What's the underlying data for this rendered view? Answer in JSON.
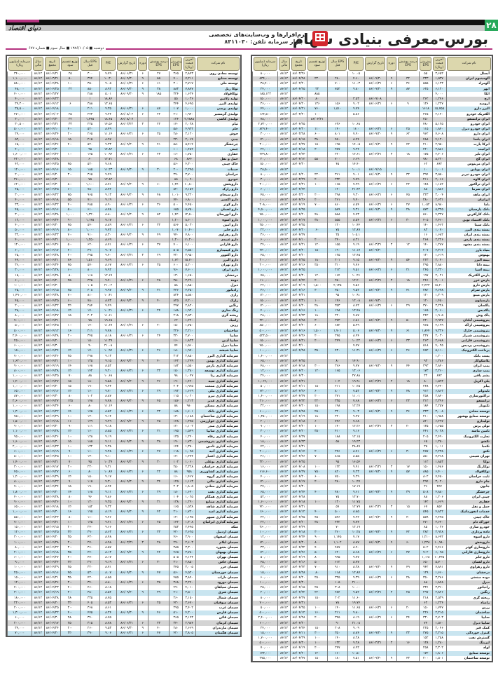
{
  "header": {
    "page_number": "۲۸",
    "title": "بورس-معرفی بنیادی سهام",
    "left_logo": "دنیای اقتصاد",
    "dateline": "دوشنبه ■ ۱۳۸۶/۱۰/۰۵ ■ سال سوم ■ شماره ۶۷۷",
    "ad": {
      "brand": "تدبیر",
      "line1": "نرم‌افزارها و وب‌سایت‌های تخصصی",
      "line2": "بازار سرمایه  تلفن: ۸۳۱۱۰۳۰"
    }
  },
  "colors": {
    "header_cell": "#dcd7ad",
    "row_gray": "#d4d4d4",
    "row_blue": "#c9e5f0",
    "accent_magenta": "#b5327f",
    "page_number_bg": "#27a85a"
  },
  "columns": [
    "نام شرکت",
    "آخرین قیمت (ریال)",
    "پیش‌بینی EPS",
    "درصد پوشش EPS",
    "دوره",
    "تاریخ گزارش",
    "P/E",
    "EPS سال قبل",
    "توزیع تقسیم سود",
    "تاریخ مجمع",
    "سال مالی",
    "سرمایه (میلیون ریال)"
  ],
  "right_table": {
    "rows": [
      "آبسال|۳,۶۵۲|۵۵||||۱۰.۰۵|||۸۶/۰۳/۲۶|۸۶/۱۲|۸۰,۰۰۰",
      "آلومینیوم ایران|۱,۵۳۷|۳۳۳|۳۲|۹|۸۶/۰۹/۳۰|۴.۶۰|۲۸۰|۲۳۰|۸۶/۰۴/۲۸|۸۶/۱۲|۵۳۴,۰۰۰",
      "آلومراد|۶,۱۲۳|۵۵۵|۳۶|۶|۸۶/۰۶/۳۱|۱۱.۰۳|۷۰۰||۸۶/۰۲/۲۰|۸۶/۱۲|۳۸,۴۰۰",
      "ابهر|۶,۱۲۰|۶۲۵|۸۷|۹|۸۶/۰۹/۳۰|۹.۸۰|۷۵۲|۲۲|۸۶/۰۴/۲۵|۸۶/۱۲|۲۴,۰۰۰",
      "اتکا|۴,۰۰۰|||||||۸۸۵||۸۶/۱۲|۱۸۵,۱۲۳",
      "ارج|۱,۲۷۶|۳۶۲|||۸۶/۰۹/۰۸|۳.۵۳||۸۰|۸۶/۰۴/۲۰|۸۶/۱۲|۱۵۰,۰۰۰",
      "ارومیه|۱,۲۲۷|۱۳۶|۹|۶|۸۶/۰۶/۳۱|۹.۰۲|۱۵۶|۱۳۶|۸۶/۰۴/۲۰|۸۶/۱۲|۳۶,۰۰۰",
      "البرز دارو|۱۵,۷۵۵|۱۶۱۸||||۹.۷۴|۱,۵۱۰|۷۶۰|۸۶/۰۴/۲۱|۸۶/۱۲|۴۴,۰۰۰",
      "الکتریک خودرو|۲,۱۴۰|۳۶۵||||۵.۸۶||۱۰۰|۸۶/۰۳/۳۰|۸۶/۱۲|۱۶۴,۵۰۰",
      "ایران ترانسفو||۲۵۰||||||۸۶/۰۴/۳۱||۸۶/۱۲|۷۸,۰۰۰",
      "ایران خودرو|۵,۱۲۵|۴۸۰||||۱۰.۶۸|۶۳۶||۸۶/۰۴/۲۵|۸۶/۱۲|۲,۷۲۰,۰۰۰",
      "ایران خودرو دیزل|۱,۸۴۰|۱۱۵|۲۵|۶|۸۶/۰۶/۳۱|۱۶.۰|۱۴۰|۱۱۰|۸۶/۰۴/۳۰|۸۶/۱۲|۸۲۹,۴۰۰",
      "ایران دارو|۷,۶۰۸|۹۶۲|۶۲|۹|۸۶/۰۹/۳۰|۷.۹۰|۸۰۱|۶۰۰|۸۶/۰۳/۲۸|۸۶/۱۲|۳۰,۰۰۰",
      "ایران یاسا|۴,۱۲۰|۴۸۸||||۸.۴۴|۴۵۰|۳۸۰|۸۶/۰۴/۱۵|۸۶/۱۲|۱۲۰,۰۰۰",
      "ایرکا پارت|۲,۹۵۰|۲۱۰|۴۲|۹|۸۶/۰۹/۳۰|۱۴.۰۵|۱۹۵|۱۵۰|۸۶/۰۴/۲۷|۸۶/۱۲|۳۰۰,۰۰۰",
      "ایرانیت|۳,۸۸۱|۴۲۰||||۹.۲۴|۳۸۷|۳۰۰|۸۶/۰۴/۱۸|۸۶/۱۲|۴۴,۰۰۰",
      "ایران تایر|۲,۲۰۶|۱۷۵|۱۸|۳|۸۶/۰۳/۳۱|۱۲.۶۱|۲۲۰||۸۶/۰۴/۲۳|۸۶/۱۲|۲۴۹,۸۰۰",
      "ایران گچ|۵,۲۲۰|۷۸۰||||۶.۶۹|۷۰۰|۵۵۰|۸۶/۰۴/۱۲|۸۶/۱۲|۲۰,۰۰۰",
      "ایران مرینوس|۸۹۳|۶۲||||۱۴.۴۰|۴۵||۸۶/۰۴/۳۰|۸۶/۱۲|۱۵۰,۰۰۰",
      "ایران پوپلین|۱,۰۰۱|۱۰|||۸۶/۰۹/۱۵|۱۰۰.۱||||۸۶/۱۲|۲۸,۵۰۰",
      "ایران خودرو تبریز|۳,۵۵۰|۳۹۴|۳۲|۹|۸۶/۰۹/۳۰|۹.۰۱|۳۶۱|۲۲۰|۸۶/۰۴/۲۰|۸۶/۱۲|۸۰,۰۰۰",
      "ایران کاوه|۲,۰۶۶|۲۱۱||||۹.۷۹|۲۳۲|۲۰۰|۸۶/۰۳/۲۹|۸۶/۱۲|۳۰,۰۰۰",
      "ایران تراکتور|۱,۱۸۲|۱۴۸|۲۲|۶|۸۶/۰۶/۳۱|۷.۹۹|۱۶۵|۱۰۰|۸۶/۰۴/۳۱|۸۶/۱۲|۳۰۰,۰۰۰",
      "ایران سرما|۱,۸۸۶|۸۸||||۲۱.۴۳|۱۲۰||۸۶/۰۴/۲۴|۸۶/۱۲|۶۰,۰۰۰",
      "ایران ماهد|۳,۰۰۴|۳۲۳|۴۵|۶|۸۶/۰۶/۳۱|۹.۳۰|۲۹۸|۲۰۰|۸۶/۰۳/۲۰|۸۶/۱۲|۴۵,۰۰۰",
      "ایرانیان|۲,۶۳۱|۲۸۰||||۹.۴۰|۲۶۱|۲۰۰|۸۶/۰۴/۲۶|۸۶/۱۲|۱۰۰,۰۰۰",
      "باما|۸,۹۸۰|۱,۰۵۲|۲۷|۶|۸۶/۰۶/۳۱|۸.۵۴|۸۶۰|۷۰۰|۸۶/۰۴/۱۹|۸۶/۱۲|۲۰۸,۰۰۰",
      "بانک پارسیان|۵,۳۲۵|۵۷۲|۲۸|۹|۸۶/۰۹/۳۰|۹.۳۱|۵۸۹||۸۶/۰۴/۲۵|۸۶/۱۲|۴,۵۰۰,۰۰۰",
      "بانک کارآفرین|۴,۳۲۷|۵۶۰||||۷.۷۳|۵۸۸|۴۸۰|۸۶/۰۴/۲۰|۸۶/۱۲|۷۵۰,۰۰۰",
      "بانک اقتصاد نوین|۳,۴۶۰|۴۰۵|۳۰|۶|۸۶/۰۶/۳۱|۸.۵۴|۵۵۵|۳۸۰|۸۶/۰۴/۱۷|۸۶/۱۲|۱,۰۰۰,۰۰۰",
      "بانک سینا|۱,۴۶۲|۱۴۰||||۱۰.۴۴|۱۲۰||۸۶/۰۴/۲۵|۸۶/۱۲|۲۵۰,۰۰۰",
      "بسته بندی البرز|۱,۰۷۰|۸۳||||۱۲.۸۹|۷۵|۶۰|۸۶/۰۴/۲۰|۸۶/۱۲|۲۲,۰۰۰",
      "بسته بندی ایران|۱,۶۸۲|۱۶||||۱۰۵.۱|۲۵||۸۶/۰۴/۲۷|۸۶/۱۲|۳۶,۰۰۰",
      "بسته بندی پارس|۲,۲۲۶|۲۶۸||||۸.۳۱|۲۴۰|۲۰۰|۸۶/۰۴/۱۰|۸۶/۱۲|۶۰,۰۰۰",
      "بسته بندی مشهد|۱,۲۸۷|۱۴۰|۱۲|۳|۸۶/۰۳/۳۱|۹.۱۹|۱۵۵|۱۲۰|۸۶/۰۴/۲۱|۸۶/۱۲|۲۴,۰۰۰",
      "بنیاد بارز|۲,۳۱۲|۲۰۷|||۸۶/۰۹/۳۰|۱۱.۱۷|۱۹۰|۱۵۰|۸۶/۰۳/۳۰|۸۶/۱۲|۲۴۰,۰۰۰",
      "بهنوش|۱,۶۱۹|۱۳۰||||۱۲.۴۵|۱۲۵||۸۶/۰۴/۲۰|۸۶/۱۲|۴۵,۰۰۰",
      "بیمه البرز|۲,۰۴۰|۲۲۳|۵۴|۹|۸۶/۰۹/۳۰|۹.۱۵|۲۰۱|۱۸۰|۸۶/۰۳/۲۵|۸۶/۱۲|۳۰۰,۰۰۰",
      "بیمه دانا|۲,۸۸۰|۲۹۵||||۹.۷۶|۳۱۰|۲۵۰|۸۶/۰۴/۱۶|۸۶/۱۲|۲۰۰,۰۰۰",
      "بیمه آسیا|۲,۳۳۰|۲۴۵|۲۱|۶|۸۶/۰۶/۳۱|۹.۵۱|۲۱۳||۸۶/۰۴/۲۵|۸۶/۱۲|۱,۰۰۰,۰۰۰",
      "پارس الکتریک|۲,۰۲۱|۱۹۷||||۱۰.۲۶|۱۶۴|۱۲۰|۸۶/۰۴/۳۰|۸۶/۱۲|۷۵,۰۰۰",
      "پارس خزر|۳,۰۰۱|۲۴۶|۱۸|۳|۸۶/۰۳/۳۱|۱۲.۲۰|۲۵۰|۲۰۰|۸۶/۰۴/۲۴|۸۶/۱۲|۱۱۰,۰۰۰",
      "پارس دارو|۱۸,۴۰۰|۲,۴۳۳||||۷.۵۶|۲,۱۳۵|۱,۵۰۰|۸۶/۰۴/۰۹|۸۶/۱۲|۲۲,۰۰۰",
      "پارس سرام|۳,۶۳۸|۳۸۲|۴۱|۹|۸۶/۰۹/۳۰|۹.۵۲|۳۵۰|۳۰۰|۸۶/۰۴/۱۶|۸۶/۱۲|۳۶,۰۰۰",
      "پارس مینو|۱,۳۰۹|۱۲۰||||۱۰.۹۱|۹۵||۸۶/۰۴/۳۱|۸۶/۱۲|۱۲۰,۰۰۰",
      "پارسیلون|۱,۴۵۰|۱۲۰|||۸۶/۰۹/۳۰|۱۲.۰۸|۱۴۶|۱۰۰|۸۶/۰۳/۳۱|۸۶/۱۲|۱۵۰,۰۰۰",
      "پاکسان|۳,۲۲۸|۳۷۰|۲۹|۶|۸۶/۰۶/۳۱|۸.۷۲|۳۵۳|۲۸۰|۸۶/۰۴/۲۰|۸۶/۱۲|۱۲۰,۰۰۰",
      "پاکدیس|۲,۰۶۰|۱۶۵||||۱۲.۴۸|۱۹۸|۱۰۰|۸۶/۰۴/۱۶|۸۶/۱۲|۴۰,۰۰۰",
      "پاک وش|۱,۹۰۵|۲۴۲||||۷.۸۷|۲۲۰|۱۸۰|۸۶/۰۴/۲۳|۸۶/۱۲|۲۸,۰۰۰",
      "پتروشیمی آبادان|۲,۹۲۷|۴۳۰|۵۰|۹|۸۶/۰۹/۳۰|۶.۸۱|۳۷۳|۳۰۰|۸۶/۰۴/۲۸|۸۶/۱۲|۳۲۰,۰۰۰",
      "پتروشیمی اراک|۴,۱۹۹|۷۶۵||||۵.۴۹|۶۸۲|۶۰۰|۸۶/۰۴/۳۰|۸۶/۱۲|۸۵۰,۰۰۰",
      "پتروشیمی خارک|۹,۳۳۶|۱,۸۴۴|۶۱|۹|۸۶/۰۹/۳۰|۵.۰۶|۱,۷۰۱|۱,۵۰۰|۸۶/۰۴/۱۶|۸۶/۱۲|۵۰۰,۰۰۰",
      "پتروشیمی شیراز|۲,۰۳۰|۲۲۷||||۸.۹۴|۲۴۵|۲۰۰|۸۶/۰۴/۲۶|۸۶/۱۲|۵۲۲,۵۰۰",
      "پتروشیمی فارابی|۲,۶۸۸|۲۶۳|۳۳|۶|۸۶/۰۶/۳۱|۱۰.۲۲|۲۴۹|۲۰۰|۸۶/۰۴/۲۱|۸۶/۱۲|۱۵۰,۰۰۰",
      "پتروشیمی پردیس|۴,۰۲۵|۵۱۸||||۷.۷۷|||۸۶/۰۳/۱۰|۸۶/۱۲|۷۵۰,۰۰۰",
      "پرداخت الکترونیک|۵,۱۱۰|۴۵۲|۲۶|۶|۸۶/۰۶/۳۱|۱۱.۳۱|۴۳۰|۳۵۰|۸۶/۰۴/۲۸|۸۶/۱۲|۱۰۰,۰۰۰",
      "پست بانک|۱,۲۰۰|||||||||۸۶/۱۲|۱,۴۰۰,۰۰۰",
      "پلاسکوکار|۱,۳۸۶|۹۳||||۱۴.۹۰|۸۰||۸۶/۰۴/۲۵|۸۶/۱۲|۶۵,۰۰۰",
      "پمپ ایران|۳,۸۴۰|۳۹۳|۴۴|۹|۸۶/۰۹/۳۰|۹.۷۷|۳۶۶|۳۰۰|۸۶/۰۴/۱۸|۸۶/۱۲|۴۸,۰۰۰",
      "پمپ سازی|۲,۲۶۰|۱۷۳||||۱۳.۰۶|۱۶۵|۱۲۰|۸۶/۰۴/۲۰|۸۶/۱۲|۱۲,۰۰۰",
      "پشم بافی|۸۹۲|۳۲||||۲۷.۸۸|||۸۶/۰۴/۳۰|۸۶/۱۲|۲۴,۰۰۰",
      "پلی اکریل|۱,۵۹۳|۸۰|۱۸|۳|۸۶/۰۳/۳۱|۱۹.۹۱|۱۰۴||۸۶/۰۴/۳۱|۸۶/۱۲|۱,۰۶۴,۰۰۰",
      "پیام|۲,۴۴۰|۲۳۸||||۱۰.۲۵|۲۱۱|۱۵۰|۸۶/۰۴/۱۱|۸۶/۱۲|۵۰,۰۰۰",
      "تایدواتر|۶,۸۶۲|۹۱۲|۴۸|۹|۸۶/۰۹/۳۰|۷.۵۲|۸۰۰|۶۰۰|۸۶/۰۴/۲۶|۸۶/۱۲|۶۳۰,۰۰۰",
      "تراکتورسازی|۲,۸۴۰|۲۵۸||||۱۱.۰۱|۲۷۱|۲۰۰|۸۶/۰۴/۲۷|۸۶/۱۲|۱,۴۰۰,۰۰۰",
      "ترانسفو|۲,۳۹۶|۳۱۲|۲۳|۶|۸۶/۰۶/۳۱|۷.۶۸|۳۳۵|۲۲۰|۸۶/۰۴/۲۲|۸۶/۱۲|۲۱۰,۰۰۰",
      "تکنوتار|۲,۲۵۷|۱۸۴||||۱۲.۲۷|۱۹۸|۱۵۰|۸۶/۰۴/۲۰|۸۶/۱۲|۳۲,۰۰۰",
      "توسعه معادن|۳,۰۰۸|۳۳۳|۳۶|۹|۸۶/۰۹/۳۰|۹.۰۳|۳۲۰|۲۵۰|۸۶/۰۴/۲۸|۸۶/۱۲|۶۰۰,۰۰۰",
      "توسعه صنایع بهشهر|۱,۹۸۸|۲۱۰||||۹.۴۷|۲۲۰|۱۸۰|۸۶/۰۴/۱۹|۸۶/۱۲|۱,۳۵۰,۰۰۰",
      "تولیدارو|۶,۲۹۷|۸۲۰||||۷.۶۸|۷۴۶|۶۰۰|۸۶/۰۴/۱۸|۸۶/۱۲|۲۰,۰۰۰",
      "تولی پرس|۱,۶۵۵|۱۳۵|۲۰|۳|۸۶/۰۳/۳۱|۱۲.۲۶|۱۴۰|۱۰۰|۸۶/۰۴/۳۰|۸۶/۱۲|۹۰,۰۰۰",
      "تامین ماسه|۴,۰۳۸|۴۴۱||||۹.۱۶|۴۱۰|۳۵۰|۸۶/۰۴/۲۰|۸۶/۱۲|۳۰,۰۰۰",
      "تجارت الکترونیک|۲,۴۹۰|۲۰۵||||۱۲.۱۵|۱۸۸||۸۶/۰۴/۲۷|۸۶/۱۲|۴۰,۰۰۰",
      "تکشو|۱,۲۵۰|۶۵||||۱۹.۲۳|۵۸||۸۶/۰۴/۲۳|۸۶/۱۲|۱۸,۰۰۰",
      "تکمبا|۱,۰۱۱|۳۵||||۲۸.۸۹|||۸۶/۰۴/۳۱|۸۶/۱۲|۴۲,۰۰۰",
      "تکنو|۲,۲۳۸|۲۵۷|۳۰|۶|۸۶/۰۶/۳۱|۸.۷۱|۲۴۶|۲۰۰|۸۶/۰۴/۱۴|۸۶/۱۲|۲۰۰,۰۰۰",
      "تهران شیمی|۷,۲۶۸|۸۵۰||||۸.۵۵|۸۱۵|۷۰۰|۸۶/۰۴/۲۶|۸۶/۱۲|۲۶,۰۰۰",
      "توکا|۱,۸۵۳|۱۱۲||||۱۶.۵۴|۹۵||۸۶/۰۴/۲۵|۸۶/۱۲|۳۲۰,۰۰۰",
      "توکارنگ|۱,۴۸۶|۱۵۰|۱۷|۳|۸۶/۰۳/۳۱|۹.۹۱|۱۲۲|۱۰۰|۸۶/۰۴/۰۸|۸۶/۱۲|۱۶,۰۰۰",
      "توکافولاد|۶,۴۰۰|۸۸۵|۵۷|۹|۸۶/۰۹/۳۰|۷.۲۳|۸۲۰|۷۵۰|۸۶/۰۴/۲۷|۸۶/۱۲|۶۱۶,۶۰۰",
      "ثابت خراسان|۷,۴۵۰|۸۰۲||||۹.۲۹|۷۵۰|۶۰۰|۸۶/۰۴/۲۰|۸۶/۱۲|۴۰,۰۰۰",
      "جام دارو|۳,۰۲۰|۲۹۴||||۱۰.۲۷|۲۸۰|۲۰۰|۸۶/۰۴/۱۷|۸۶/۱۲|۱۲۰,۰۰۰",
      "جابون|۴۴۷|۲۶||||۱۷.۱۹|||۸۶/۰۴/۳۰|۸۶/۱۲|۲۷,۰۰۰",
      "چرخشگر|۴,۸۸۰|۵۰۸|۳۹|۹|۸۶/۰۹/۳۰|۹.۶۱|۴۸۰|۴۰۰|۸۶/۰۴/۲۴|۸۶/۱۲|۶۵,۰۰۰",
      "چینی ایران|۱,۲۰۶|۸۸||||۱۳.۷۰|۷۵||۸۶/۰۴/۲۸|۸۶/۱۲|۵۲,۰۰۰",
      "حفاری|۱,۶۶۹|۱۴۲||||۱۱.۷۵|۱۳۰|۱۰۰|۸۶/۰۴/۱۸|۸۶/۱۲|۱,۶۰۰,۰۰۰",
      "حمل و نقل|۸۵۷|۶۷|۱۵|۳|۸۶/۰۳/۳۱|۱۲.۷۹|۵۹||۸۶/۰۴/۳۱|۸۶/۱۲|۴۲۰,۰۰۰",
      "خدمات انفورماتیک|۴,۸۲۲|۵۴۵||||۸.۸۵|۵۰۰|۴۰۰|۸۶/۰۴/۱۲|۸۶/۱۲|۱۶۰,۰۰۰",
      "خاک چینی|۴,۴۲۵|۵۵۹|۴۰|۹|۸۶/۰۹/۳۰|۷.۹۲|۵۲۶|۴۵۰|۸۶/۰۴/۲۵|۸۶/۱۲|۴۲,۰۰۰",
      "خوراک دام|۳,۶۴۰|۴۷۰||||۷.۷۴|۴۳۲|۳۸۰|۸۶/۰۴/۲۰|۸۶/۱۲|۲۲,۰۰۰",
      "خودرو سازی|۱,۰۳۶|۸۵||||۱۲.۱۹|۷۰||۸۶/۰۴/۲۹|۸۶/۱۲|۳۶۰,۰۰۰",
      "داده پردازی|۳,۹۲۸|۳۸۲|۴۲|۹|۸۶/۰۹/۳۰|۱۰.۲۸|۳۶۰|۳۰۰|۸۶/۰۴/۱۸|۸۶/۱۲|۱۰۰,۰۰۰",
      "دارو اسوه|۸,۶۷۲|۱,۲۱۰||||۷.۱۷|۱,۱۴۵|۹۰۰|۸۶/۰۴/۲۴|۸۶/۱۲|۱۲,۰۰۰",
      "داروپخش|۱۰,۹۸۰|۱,۲۳۸|۶۰|۹|۸۶/۰۹/۳۰|۸.۸۷|۱,۱۰۲|۸۰۰|۸۶/۰۴/۳۰|۸۶/۱۲|۶۲۰,۰۰۰",
      "داروسازی کوثر|۴,۴۶۶|۵۰۲||||۸.۹۰|۴۸۷|۴۰۰|۸۶/۰۴/۲۲|۸۶/۱۲|۳۳,۰۰۰",
      "داروسازی فارابی|۶,۰۹۵|۷۰۲|۳۷|۶|۸۶/۰۶/۳۱|۸.۶۸|۶۲۰|۵۰۰|۸۶/۰۴/۲۶|۸۶/۱۲|۱۳۰,۰۰۰",
      "دارو جابر|۱۰,۴۳۵|۱,۰۶۸||||۹.۷۷|۹۹۵|۸۰۰|۸۶/۰۴/۱۹|۸۶/۱۲|۵۰,۰۰۰",
      "دارو لقمان|۵,۷۰۰|۶۵۰||||۸.۷۷|۶۱۲|۵۰۰|۸۶/۰۴/۱۶|۸۶/۱۲|۴۵,۰۰۰",
      "دارو زهراوی|۷,۸۹۱|۹۴۲|۴۹|۹|۸۶/۰۹/۳۰|۸.۳۸|۹۱۰|۷۰۰|۸۶/۰۴/۲۳|۸۶/۱۲|۳۲,۰۰۰",
      "درخشان|۱,۶۶۰|۱۲۹||||۱۲.۸۷|۱۱۸|۸۰|۸۶/۰۴/۲۸|۸۶/۱۲|۱۵,۰۰۰",
      "دوده صنعتی|۳,۲۸۶|۳۵۰|۲۸|۶|۸۶/۰۶/۳۱|۹.۳۹|۳۲۵|۲۵۰|۸۶/۰۴/۲۰|۸۶/۱۲|۶۰,۰۰۰",
      "دیزل|۱,۸۴۸|۸۸||||۲۱.۰۰|۱۰۵||۸۶/۰۴/۳۰|۸۶/۱۲|۱۰۰,۰۰۰",
      "رادیاتور|۳,۳۶۰|۳۳۶||||۱۰.۰۰|۳۰۸|۲۵۰|۸۶/۰۴/۱۵|۸۶/۱۲|۲۵,۰۰۰",
      "رنگین|۲,۸۲۶|۲۹۷|۲۵|۳|۸۶/۰۳/۳۱|۹.۵۲|۲۸۴|۲۲۰|۸۶/۰۴/۲۲|۸۶/۱۲|۲۰,۰۰۰",
      "ریخته گری|۲,۵۲۹|۲۱۸||||۱۱.۶۰|۲۰۲|۱۵۰|۸۶/۰۴/۲۷|۸۶/۱۲|۸۰,۰۰۰",
      "زامیاد|۱,۲۲۴|۶۲||||۱۹.۷۴|۷۸||۸۶/۰۴/۳۱|۸۶/۱۲|۷۰۰,۰۰۰",
      "زرین|۱,۷۴۷|۱۵۰|۲۰|۶|۸۶/۰۶/۳۱|۱۱.۶۵|۱۴۰|۱۰۰|۸۶/۰۴/۲۵|۸۶/۱۲|۵۰,۰۰۰",
      "ساختمان|۲,۲۱۵|۲۲۶||||۹.۸۰|۲۱۱|۱۶۰|۸۶/۰۴/۱۲|۸۶/۱۲|۵۰۰,۰۰۰",
      "سایپا|۲,۷۰۳|۳۳۰|۲۴|۶|۸۶/۰۶/۳۱|۸.۱۹|۳۴۵|۲۰۰|۸۶/۰۴/۲۸|۸۶/۱۲|۲,۴۰۰,۰۰۰",
      "سایپا دیزل|۱,۵۶۰|۷۴||||۲۱.۰۸|۹۰||۸۶/۰۴/۳۰|۸۶/۱۲|۶۰۰,۰۰۰",
      "کمک فنر|۲,۰۴۶|۲۲۵||||۹.۰۹|۲۰۸|۱۵۰|۸۶/۰۴/۲۴|۸۶/۱۲|۲۴,۰۰۰",
      "کنترل خوردگی|۳,۳۱۵|۳۷۵|۳۳|۹|۸۶/۰۹/۳۰|۸.۸۴|۳۵۰|۳۰۰|۸۶/۰۴/۱۱|۸۶/۱۲|۱۵,۰۰۰",
      "گسترش نفت|۱,۲۵۸|۱۵۲||||۸.۲۸|۱۴۰|۱۰۰|۸۶/۰۴/۲۹|۸۶/۱۲|۱,۷۰۰,۰۰۰",
      "لیزینگ|۱,۲۸۰|۱۳۸|۱۶|۳|۸۶/۰۳/۳۱|۹.۲۸|۱۳۲|۱۰۰|۸۶/۰۴/۳۰|۸۶/۱۲|۵۰۰,۰۰۰",
      "لوله|۲,۳۰۲|۲۵۸||||۸.۹۲|۲۴۷|۲۰۰|۸۶/۰۴/۱۹|۸۶/۱۲|۷۰,۰۰۰",
      "توسعه صنایع|۱,۸۰۶|۱۷۲||||۱۰.۵۰|۱۶۰|۱۲۰|۸۶/۰۴/۲۰|۸۶/۱۲|۱۴۳,۰۰۰",
      "توسعه ساختمان|۱,۵۰۱|۲۰۰|۴۳|۹|۸۶/۰۹/۳۰|۷.۵۱|۱۸۰|۱۵۰|۸۶/۰۴/۲۷|۸۶/۱۲|۲۷۵,۰۰۰"
    ]
  },
  "left_table": {
    "rows": [
      "توسعه معادن روی|۲,۸۴۳|۳۶۵|۲۷|۶|۸۶/۰۶/۳۱|۷.۷۹|۳۰۰|۲۵|۸۶/۰۴/۲۱|۸۶/۱۲|۳۴۰,۰۰۰",
      "توسعه صنایع|۷,۲۱۱|۷۰۰|۵۵|۹|۸۶/۰۹/۳۰|۱۰.۳۰|۳۴۴|۵۰|۸۶/۰۳/۲۱|۸۶/۱۲|۱,۱۰۰,۰۰۰",
      "توسعه ملی|۲,۷۱۷|۳۰۰|۶۱|۶|۸۶/۰۶/۳۱|۹.۰۵|۳۵۰|۱۰۰|۸۶/۰۴/۲۸|۸۶/۱۲|۵۸۰,۰۰۰",
      "توکا ریل|۷,۸۷۷|۸۸۳|۳۸|۹|۸۶/۰۹/۳۰|۸.۹۲|۸۵۰|۲۲|۸۶/۰۴/۲۵|۸۶/۱۲|۴۸,۰۰۰",
      "توکافولاد|۱,۶۲۴|۳۲۴|۱۸۵|۹|۸۶/۰۹/۳۰|۵.۰۱|۲۸۸||۸۶/۰۳/۲۷|۸۶/۱۲|۴۰۰,۰۰۰",
      "تولید ژلاتین|۱,۰۳۶|۵۵||||۱۸.۸۴|۱||۸۶/۰۴/۲۳|۸۶/۱۲|۴۰,۰۰۰",
      "تولیدی البرز|۴,۶۹۵|۳۴۴||||۱۳.۶۵|۳۸۸|۶|۸۶/۰۴/۱۲|۸۶/۱۲|۳۴,۳۰۰",
      "تولیدی پرسی|۱,۰۰۰|۱۰۷|۸۷|۶|۸۶/۰۶/۳۱|۹.۳۵|۲۱۱||۸۶/۰۴/۱۸|۸۶/۱۲|۳۵,۵۰۰",
      "تولیدی گرمسیر|۱,۹۴۰|۲۱۰|۲۲|۶|۸۶/۰۸/۰۲|۹.۲۴|۲۴۳|۲۵|۸۶/۰۴/۰۲|۸۶/۱۲|۲۷۰,۰۰۰",
      "تولیدی کاشی|۲,۲۸۸۸|۱۲۴|||۸۶/۰۸/۰۷|۱۸.۴۵|۱,۴۴۵|۲۲|۸۶/۰۳/۳۰|۸۶/۱۲|۳۰,۰۰۰",
      "تیام|۲,۰۳۸|۱۴۰|۲۲|۳|۸۶/۰۳/۲۲|۱۴.۵۶|۲۲۵|۳۳|۸۶/۰۳/۲۱|۸۶/۱۲|۳۰,۵۰۰",
      "جام|۴,۹۲۲|۵۸۰||||۸.۴۹|۵۲۰|۴۰۰|۸۶/۰۴/۱۰|۸۶/۱۲|۵۰۰,۰۰۰",
      "جوش|۳,۱۲۰|۲۸۰|۳۵|۶|۸۶/۰۶/۳۱|۱۱.۱۴|۲۶۵|۲۰۰|۸۶/۰۴/۲۴|۸۶/۱۲|۲۴,۰۰۰",
      "چدن|۲,۰۶۴|۲۳۰||||۸.۹۷|۲۱۵|۱۵۰|۸۶/۰۴/۱۸|۸۶/۱۲|۵۲,۰۰۰",
      "چرخشگر|۵,۴۱۴|۵۸۰|۴۱|۹|۸۶/۰۹/۳۰|۹.۳۳|۵۲۰|۴۰۰|۸۶/۰۴/۲۶|۸۶/۱۲|۶۵,۰۰۰",
      "چینی|۱,۴۸۲|۱۰۰||||۱۴.۸۲|۹۵||۸۶/۰۴/۳۰|۸۶/۱۲|۴۰,۰۰۰",
      "حفاری|۱,۷۵۰|۱۶۰|۲۳|۶|۸۶/۰۶/۳۱|۱۰.۹۴|۱۴۵|۱۰۰|۸۶/۰۴/۲۲|۸۶/۱۲|۱,۶۰۰,۰۰۰",
      "حمل و نقل|۸۶۴|۶۸||||۱۲.۷۱|۶۰||۸۶/۰۴/۲۸|۸۶/۱۲|۴۲۰,۰۰۰",
      "خاک چینی|۴,۳۰۰|۵۶۰||||۷.۶۸|۵۲۰|۴۵۰|۸۶/۰۴/۲۵|۸۶/۱۲|۴۲,۰۰۰",
      "خدمات|۲,۲۴۵|۲۰۰|۳۰|۹|۸۶/۰۹/۳۰|۱۱.۲۳|۱۸۵|۱۵۰|۸۶/۰۴/۱۶|۸۶/۱۲|۱۲۰,۰۰۰",
      "خراسان|۳,۷۰۰|۳۹۰||||۹.۴۹|۳۶۵|۳۰۰|۸۶/۰۴/۲۰|۸۶/۱۲|۲۰,۰۰۰",
      "خودرو|۱,۰۹۰|۸۵||||۱۲.۸۲|۷۵||۸۶/۰۴/۳۰|۸۶/۱۲|۳۶۰,۰۰۰",
      "داروپخش|۱۰,۸۰۰|۱,۲۴۰|۶۰|۹|۸۶/۰۹/۳۰|۸.۷۱|۱,۱۰۰|۸۰۰|۸۶/۰۴/۳۰|۸۶/۱۲|۶۲۰,۰۰۰",
      "دارو رازک|۷,۱۵۲|۸۲۰||||۸.۷۲|۷۸۰|۶۰۰|۸۶/۰۴/۲۵|۸۶/۱۲|۴۵,۰۰۰",
      "دارو سبحان|۹,۲۲۰|۱,۰۱۰|۴۸|۹|۸۶/۰۹/۳۰|۹.۱۳|۹۶۵|۷۵۰|۸۶/۰۴/۲۲|۸۶/۱۲|۳۰,۰۰۰",
      "دارو اکسیر|۶,۸۰۰|۷۴۰||||۹.۱۹|۷۱۰|۵۵۰|۸۶/۰۴/۱۸|۸۶/۱۲|۴۰,۰۰۰",
      "دارو کوثر|۴,۴۵۰|۵۰۰|۳۶|۶|۸۶/۰۶/۳۱|۸.۹۰|۴۸۵|۴۰۰|۸۶/۰۴/۲۲|۸۶/۱۲|۳۳,۰۰۰",
      "دارو لقمان|۵,۷۵۰|۶۵۵||||۸.۷۸|۶۱۰|۵۰۰|۸۶/۰۴/۱۶|۸۶/۱۲|۴۵,۰۰۰",
      "دارو ابوریحان|۱۲,۵۰۰|۱,۴۲۰|۵۲|۹|۸۶/۰۹/۳۰|۸.۸۰|۱,۳۲۰|۱,۰۰۰|۸۶/۰۴/۲۸|۸۶/۱۲|۳۰,۰۰۰",
      "دارو اسوه|۸,۶۰۰|۱,۲۰۰||||۷.۱۷|۱,۱۴۵|۹۰۰|۸۶/۰۴/۲۴|۸۶/۱۲|۱۲,۰۰۰",
      "دارو امین|۵,۰۳۰|۵۶۶|۳۲|۶|۸۶/۰۶/۳۱|۸.۸۹|۵۴۰|۴۵۰|۸۶/۰۴/۲۰|۸۶/۱۲|۴۰,۰۰۰",
      "دارو جابر|۱۰,۴۰۰|۱,۰۷۰||||۹.۷۲|۱,۰۰۰|۸۰۰|۸۶/۰۴/۱۹|۸۶/۱۲|۵۰,۰۰۰",
      "دارو زهراوی|۷,۸۰۰|۹۴۰|۴۹|۹|۸۶/۰۹/۳۰|۸.۳۰|۹۱۰|۷۰۰|۸۶/۰۴/۲۳|۸۶/۱۲|۳۲,۰۰۰",
      "دارو عبیدی|۱۱,۳۰۰|۱,۳۰۰||||۸.۶۹|۱,۲۵۰|۱,۰۰۰|۸۶/۰۴/۲۱|۸۶/۱۲|۴۰,۰۰۰",
      "دارو فارابی|۶,۱۰۰|۷۰۰|۳۷|۶|۸۶/۰۶/۳۱|۸.۷۱|۶۲۰|۵۰۰|۸۶/۰۴/۲۶|۸۶/۱۲|۱۳۰,۰۰۰",
      "دارو کیمیدارو|۴,۵۸۰|۵۰۵||||۹.۰۷|۴۹۰|۴۰۰|۸۶/۰۴/۱۷|۸۶/۱۲|۶۰,۰۰۰",
      "دارو اکتوور|۳,۹۵۰|۴۲۰|۲۹|۳|۸۶/۰۳/۳۱|۹.۴۰|۳۹۵|۳۰۰|۸۶/۰۴/۲۸|۸۶/۱۲|۲۵,۰۰۰",
      "دارو البرز|۱۵,۷۰۰|۱,۶۲۰||||۹.۶۹|۱,۵۱۰|۷۶۰|۸۶/۰۴/۲۱|۸۶/۱۲|۴۴,۰۰۰",
      "دارو تهران|۵,۲۰۰|۶۰۰|۳۵|۶|۸۶/۰۶/۳۱|۸.۶۷|۵۷۰|۴۵۰|۸۶/۰۴/۲۴|۸۶/۱۲|۳۶,۰۰۰",
      "دارو ایران|۷,۶۰۰|۹۶۰||||۷.۹۲|۸۰۰|۶۰۰|۸۶/۰۳/۲۸|۸۶/۱۲|۳۰,۰۰۰",
      "درخشان|۱,۶۵۰|۱۳۰||||۱۲.۶۹|۱۱۸|۸۰|۸۶/۰۴/۲۸|۸۶/۱۲|۱۵,۰۰۰",
      "دوده|۳,۲۹۰|۳۵۰|۲۸|۶|۸۶/۰۶/۳۱|۹.۴۰|۳۲۵|۲۵۰|۸۶/۰۴/۲۰|۸۶/۱۲|۶۰,۰۰۰",
      "دیزل|۱,۸۵۰|۸۸||||۲۱.۰۲|۱۰۵||۸۶/۰۴/۳۰|۸۶/۱۲|۱۰۰,۰۰۰",
      "رادیاتور|۳,۳۵۰|۳۳۶|۳۱|۹|۸۶/۰۹/۳۰|۹.۹۷|۳۰۸|۲۵۰|۸۶/۰۴/۱۵|۸۶/۱۲|۲۵,۰۰۰",
      "رازی|۸,۵۸۰|۸۲۴||||۱۰.۴۱|۸۱۰|۷۰۰|۸۶/۰۴/۲۸|۸۶/۱۲|۱,۴۹۰,۰۰۰",
      "رازک|۷,۲۰۰|۸۲۵|۴۰|۹|۸۶/۰۹/۳۰|۸.۷۳|۷۸۰|۶۰۰|۸۶/۰۴/۲۵|۸۶/۱۲|۴۵,۰۰۰",
      "رنگین|۲,۸۲۰|۲۹۷||||۹.۴۹|۲۸۴|۲۲۰|۸۶/۰۴/۲۲|۸۶/۱۲|۲۰,۰۰۰",
      "رنگ سازی|۱,۹۲۰|۱۸۸|۲۴|۶|۸۶/۰۶/۳۱|۱۰.۲۱|۱۷۰|۱۲۰|۸۶/۰۴/۱۸|۸۶/۱۲|۲۸,۰۰۰",
      "ریخته گری|۲,۵۳۰|۲۱۸||||۱۱.۶۱|۲۰۲|۱۵۰|۸۶/۰۴/۲۷|۸۶/۱۲|۸۰,۰۰۰",
      "زامیاد|۱,۲۲۰|۶۲||||۱۹.۶۸|۷۸||۸۶/۰۴/۳۱|۸۶/۱۲|۷۰۰,۰۰۰",
      "زرین|۱,۷۵۰|۱۵۰|۲۰|۶|۸۶/۰۶/۳۱|۱۱.۶۷|۱۴۰|۱۰۰|۸۶/۰۴/۲۵|۸۶/۱۲|۵۰,۰۰۰",
      "ساختمان|۲,۲۱۰|۲۲۶||||۹.۷۸|۲۱۱|۱۶۰|۸۶/۰۴/۱۲|۸۶/۱۲|۵۰۰,۰۰۰",
      "سایپا|۲,۷۰۰|۳۳۰|۲۴|۶|۸۶/۰۶/۳۱|۸.۱۸|۳۴۵|۲۰۰|۸۶/۰۴/۲۸|۸۶/۱۲|۲,۴۰۰,۰۰۰",
      "سایپا آذین|۱,۸۲۳|۱۶۰||||۱۱.۳۹|۱۵۰|۱۰۰|۸۶/۰۴/۲۰|۸۶/۱۲|۲۵۰,۰۰۰",
      "سایپا دیزل|۱,۵۶۰|۷۴||||۲۱.۰۸|۹۰||۸۶/۰۴/۳۰|۸۶/۱۲|۶۰۰,۰۰۰",
      "سایپا شیشه|۱,۹۷۰|۱۸۰|۲۶|۶|۸۶/۰۶/۳۱|۱۰.۹۴|۱۷۰|۱۲۰|۸۶/۰۴/۲۴|۸۶/۱۲|۱۵۰,۰۰۰",
      "سرمایه گذاری البرز|۲,۸۵۰|۳۱۲||||۹.۱۳|۲۹۸|۲۵۰|۸۶/۰۴/۲۶|۸۶/۱۲|۷۰۰,۰۰۰",
      "سرمایه گذاری بهمن|۱,۲۹۹|۱۴۲|۴۰|۹|۸۶/۰۹/۳۰|۹.۱۵|۱۳۵|۱۰۰|۸۶/۰۴/۲۱|۸۶/۱۲|۱,۶۲۰,۰۰۰",
      "سرمایه گذاری پارس|۱,۵۵۰|۱۸۲||||۸.۵۲|۱۶۸|۱۴۰|۸۶/۰۴/۱۹|۸۶/۱۲|۹۰۰,۰۰۰",
      "سرمایه گذاری توسعه|۱,۳۸۰|۱۵۰|۳۲|۶|۸۶/۰۶/۳۱|۹.۲۰|۱۴۲|۱۲۰|۸۶/۰۴/۲۸|۸۶/۱۲|۸۰۰,۰۰۰",
      "سرمایه گذاری رنا|۱,۰۴۷|۹۸||||۱۰.۶۸|۸۸|۷۰|۸۶/۰۴/۲۵|۸۶/۱۲|۱,۰۰۰,۰۰۰",
      "سرمایه گذاری سپه|۱,۴۴۰|۱۹۰|۳۶|۹|۸۶/۰۹/۳۰|۷.۵۸|۱۸۰|۱۵۰|۸۶/۰۴/۲۷|۸۶/۱۲|۱,۲۰۰,۰۰۰",
      "سرمایه گذاری صنعت|۱,۹۲۵|۲۰۴||||۹.۴۴|۱۹۰|۱۵۰|۸۶/۰۴/۲۰|۸۶/۱۲|۱,۰۰۰,۰۰۰",
      "سرمایه گذاری ملی|۱,۶۶۹|۱۷۲|۲۹|۶|۸۶/۰۶/۳۱|۹.۷۰|۱۶۰|۱۲۰|۸۶/۰۴/۱۶|۸۶/۱۲|۶۵۰,۰۰۰",
      "سرمایه گذاری نیرو|۱,۰۲۰|۱۱۵||||۸.۸۷|۱۰۲|۸۰|۸۶/۰۴/۳۰|۸۶/۱۲|۸۷۰,۰۰۰",
      "سرمایه گذاری غدیر|۱,۲۱۳|۱۵۶|۴۵|۹|۸۶/۰۹/۳۰|۷.۷۸|۱۴۸|۱۲۵|۸۶/۰۴/۲۷|۸۶/۱۲|۲,۶۰۰,۰۰۰",
      "سرمایه گذاری مسکن|۹۸۰|۸۸||||۱۱.۱۴|۸۰|۶۰|۸۶/۰۴/۲۴|۸۶/۱۲|۱,۰۰۰,۰۰۰",
      "سرمایه گذاری بانک|۱,۶۰۱|۱۸۸|۳۳|۶|۸۶/۰۶/۳۱|۸.۵۲|۱۷۵|۱۴۰|۸۶/۰۴/۲۲|۸۶/۱۲|۱,۳۰۰,۰۰۰",
      "سرمایه گذاری ساختمان|۱,۱۸۸|۱۳۰||||۹.۱۴|۱۲۰|۱۰۰|۸۶/۰۴/۲۹|۸۶/۱۲|۷۵۰,۰۰۰",
      "سرمایه گذاری خوارزمی|۱,۳۷۵|۱۴۸|۳۵|۹|۸۶/۰۹/۳۰|۹.۲۹|۱۳۹|۱۱۰|۸۶/۰۴/۱۸|۸۶/۱۲|۱,۵۰۰,۰۰۰",
      "سرمایه گذاری صدر|۱,۱۰۲|۱۲۰||||۹.۱۸|۱۱۱|۹۰|۸۶/۰۴/۲۰|۸۶/۱۲|۹۰۰,۰۰۰",
      "سرمایه گذاری سایپا|۱,۵۴۹|۱۷۵|۳۱|۶|۸۶/۰۶/۳۱|۸.۸۵|۱۶۰|۱۲۰|۸۶/۰۴/۲۸|۸۶/۱۲|۱,۱۰۰,۰۰۰",
      "سرمایه گذاری رفاه|۱,۲۴۰|۱۳۵||||۹.۱۹|۱۲۸|۱۰۰|۸۶/۰۴/۲۶|۸۶/۱۲|۹۵۰,۰۰۰",
      "سرمایه گذاری پتروشیمی|۱,۷۳۰|۱۹۰|۳۸|۹|۸۶/۰۹/۳۰|۹.۱۱|۱۸۵|۱۵۰|۸۶/۰۴/۳۰|۸۶/۱۲|۱,۶۰۰,۰۰۰",
      "سرمایه گذاری تامین|۱,۳۵۰|۱۴۴||||۹.۳۸|۱۳۲|۱۰۰|۸۶/۰۴/۲۳|۸۶/۱۲|۲,۰۰۰,۰۰۰",
      "سرمایه گذاری آتیه|۱,۰۹۵|۱۱۸|۲۷|۶|۸۶/۰۶/۳۱|۹.۲۸|۱۱۰|۹۰|۸۶/۰۴/۱۹|۸۶/۱۲|۶۰۰,۰۰۰",
      "سرمایه گذاری اعتبار|۱,۲۷۴|۱۴۰||||۹.۱۰|۱۳۰|۱۰۰|۸۶/۰۴/۲۵|۸۶/۱۲|۵۰۰,۰۰۰",
      "سرمایه گذاری بوعلی|۱,۰۶۰|۱۰۲|۳۰|۹|۸۶/۰۹/۳۰|۱۰.۳۹|۹۵|۷۰|۸۶/۰۴/۲۱|۸۶/۱۲|۱,۴۰۰,۰۰۰",
      "سرمایه گذاری خراسان|۲,۳۲۸|۲۵۰||||۹.۳۱|۲۳۰|۲۰۰|۸۶/۰۴/۱۷|۸۶/۱۲|۳۰۰,۰۰۰",
      "سرمایه گذاری کشاورزی|۹۵۸|۸۸|۲۲|۶|۸۶/۰۶/۳۱|۱۰.۸۹|۸۰|۶۰|۸۶/۰۴/۲۷|۸۶/۱۲|۴۵۰,۰۰۰",
      "سرمایه گذاری گروه|۱,۴۶۷|۱۶۰||||۹.۱۷|۱۵۰|۱۲۰|۸۶/۰۴/۲۹|۸۶/۱۲|۱,۲۰۰,۰۰۰",
      "سرمایه گذاری مالی|۱,۱۶۳|۱۲۵|۳۴|۹|۸۶/۰۹/۳۰|۹.۳۰|۱۱۵|۹۰|۸۶/۰۴/۲۲|۸۶/۱۲|۸۰۰,۰۰۰",
      "سرمایه گذاری معادن|۱,۸۰۵|۲۰۲||||۸.۹۴|۱۹۰|۱۵۰|۸۶/۰۴/۲۴|۸۶/۱۲|۷۰۰,۰۰۰",
      "سرمایه گذاری نفت|۱,۶۴۰|۱۸۰|۲۹|۶|۸۶/۰۶/۳۱|۹.۱۱|۱۶۸|۱۴۰|۸۶/۰۴/۲۰|۸۶/۱۲|۱,۸۰۰,۰۰۰",
      "سرمایه گذاری همگام|۱,۰۲۵|۱۰۴||||۹.۸۶|۹۶|۸۰|۸۶/۰۴/۲۸|۸۶/۱۲|۴۰۰,۰۰۰",
      "سرمایه گذاری صنایع|۱,۲۹۰|۱۳۸|۳۱|۹|۸۶/۰۹/۳۰|۹.۳۵|۱۳۰|۱۰۰|۸۶/۰۴/۲۶|۸۶/۱۲|۹۰۰,۰۰۰",
      "سرمایه گذاری شاهد|۱,۵۳۸|۱۶۵||||۹.۳۲|۱۵۲|۱۲۰|۸۶/۰۴/۱۸|۸۶/۱۲|۶۵۰,۰۰۰",
      "سرمایه گذاری امید|۱,۷۲۰|۲۱۰|۴۲|۹|۸۶/۰۹/۳۰|۸.۱۹|۱۹۵|۱۶۰|۸۶/۰۴/۳۰|۸۶/۱۲|۱,۰۰۰,۰۰۰",
      "سرمایه گذاری سپهر|۱,۱۳۵|۱۲۰||||۹.۴۶|۱۱۰|۸۰|۸۶/۰۴/۲۳|۸۶/۱۲|۵۵۰,۰۰۰",
      "سرمایه گذاری ایرانیان|۱,۳۰۸|۱۴۲|۲۵|۶|۸۶/۰۶/۳۱|۹.۲۱|۱۳۵|۱۰۰|۸۶/۰۴/۲۱|۸۶/۱۲|۷۰۰,۰۰۰",
      "سکه|۲,۴۴۵|۲۵۳||||۹.۶۶|۲۴۰|۲۰۰|۸۶/۰۴/۱۵|۸۶/۱۲|۱۵۰,۰۰۰",
      "سیمان اردبیل|۳,۶۲۵|۴۲۰|۳۳|۶|۸۶/۰۶/۳۱|۸.۶۳|۳۹۰|۳۲۰|۸۶/۰۴/۲۵|۸۶/۱۲|۱۲۰,۰۰۰",
      "سیمان اصفهان|۳,۹۰۰|۴۶۰||||۸.۴۸|۴۳۰|۳۵۰|۸۶/۰۴/۲۰|۸۶/۱۲|۳۰۰,۰۰۰",
      "سیمان ایلام|۲,۶۰۳|۲۹۰|۲۸|۳|۸۶/۰۳/۳۱|۸.۹۸|۲۷۰|۲۰۰|۸۶/۰۴/۲۸|۸۶/۱۲|۱۰۰,۰۰۰",
      "سیمان بجنورد|۳,۳۰۰|۳۸۵||||۸.۵۷|۳۶۰|۳۰۰|۸۶/۰۴/۲۲|۸۶/۱۲|۸۰,۰۰۰",
      "سیمان بهبهان|۳,۷۸۰|۴۶۵|۴۴|۹|۸۶/۰۹/۳۰|۸.۱۳|۴۴۰|۳۵۰|۸۶/۰۴/۱۸|۸۶/۱۲|۲۰۰,۰۰۰",
      "سیمان تهران|۴,۱۲۴|۵۰۵||||۸.۱۷|۴۷۰|۴۰۰|۸۶/۰۴/۲۷|۸۶/۱۲|۶۰۰,۰۰۰",
      "سیمان خاش|۲,۸۵۰|۳۱۰|۳۰|۶|۸۶/۰۶/۳۱|۹.۱۹|۲۹۰|۲۲۰|۸۶/۰۴/۲۴|۸۶/۱۲|۹۰,۰۰۰",
      "سیمان خزر|۳,۰۰۵|۳۴۵||||۸.۷۱|۳۲۰|۲۵۰|۸۶/۰۴/۲۹|۸۶/۱۲|۱۰۰,۰۰۰",
      "سیمان خوزستان|۴,۵۲۰|۵۶۰|۴۷|۹|۸۶/۰۹/۳۰|۸.۰۷|۵۳۰|۴۵۰|۸۶/۰۴/۱۶|۸۶/۱۲|۲۵۰,۰۰۰",
      "سیمان داراب|۳,۸۹۰|۴۵۵||||۸.۵۵|۴۲۰|۳۵۰|۸۶/۰۴/۲۱|۸۶/۱۲|۱۵۰,۰۰۰",
      "سیمان دورود|۳,۲۴۰|۳۶۸|۳۵|۶|۸۶/۰۶/۳۱|۸.۸۰|۳۴۰|۳۰۰|۸۶/۰۴/۲۶|۸۶/۱۲|۱۲۰,۰۰۰",
      "سیمان سپاهان|۴,۰۱۰|۴۹۰||||۸.۱۸|۴۶۰|۴۰۰|۸۶/۰۴/۲۳|۸۶/۱۲|۴۰۰,۰۰۰",
      "سیمان شرق|۳,۵۰۰|۴۱۰|۳۹|۹|۸۶/۰۹/۳۰|۸.۵۴|۳۸۰|۳۰۰|۸۶/۰۴/۱۹|۸۶/۱۲|۳۰۰,۰۰۰",
      "سیمان شمال|۳,۱۵۰|۳۶۰||||۸.۷۵|۳۳۵|۲۸۰|۸۶/۰۴/۲۸|۸۶/۱۲|۱۸۰,۰۰۰",
      "سیمان صوفیان|۳,۶۷۰|۴۳۰|۲۵|۶|۸۶/۰۶/۳۱|۸.۵۳|۴۰۵|۳۲۰|۸۶/۰۴/۲۰|۸۶/۱۲|۲۲۰,۰۰۰",
      "سیمان غرب|۳,۴۰۲|۳۹۵||||۸.۶۱|۳۶۸|۳۰۰|۸۶/۰۴/۲۵|۸۶/۱۲|۲۰۰,۰۰۰",
      "سیمان فارس|۴,۲۰۰|۵۱۰|۴۶|۹|۸۶/۰۹/۳۰|۸.۲۴|۴۷۵|۴۰۰|۸۶/۰۴/۲۲|۸۶/۱۲|۱,۳۰۰,۰۰۰",
      "سیمان قائن|۳,۱۹۳|۳۶۵||||۸.۷۵|۳۴۰|۲۸۰|۸۶/۰۴/۳۰|۸۶/۱۲|۶۰,۰۰۰",
      "سیمان کرمان|۲,۹۸۴|۳۴۰|۳۳|۶|۸۶/۰۶/۳۱|۸.۷۸|۳۱۵|۲۵۰|۸۶/۰۴/۱۷|۸۶/۱۲|۲۰۰,۰۰۰",
      "سیمان مازندران|۲,۶۶۹|۲۸۰|۴۰|۹|۸۶/۰۹/۳۰|۹.۵۳|۲۶۰|۲۰۰|۸۶/۰۴/۲۴|۸۶/۱۲|۳۴,۰۰۰",
      "سیمان هگمتان|۳,۸۰۵|۴۲۰|۴۷|۶|۸۶/۰۶/۳۱|۹.۰۶|۳۹۰|۳۲۰|۸۶/۰۴/۲۰|۸۶/۱۲|۷۰,۰۰۰"
    ]
  }
}
